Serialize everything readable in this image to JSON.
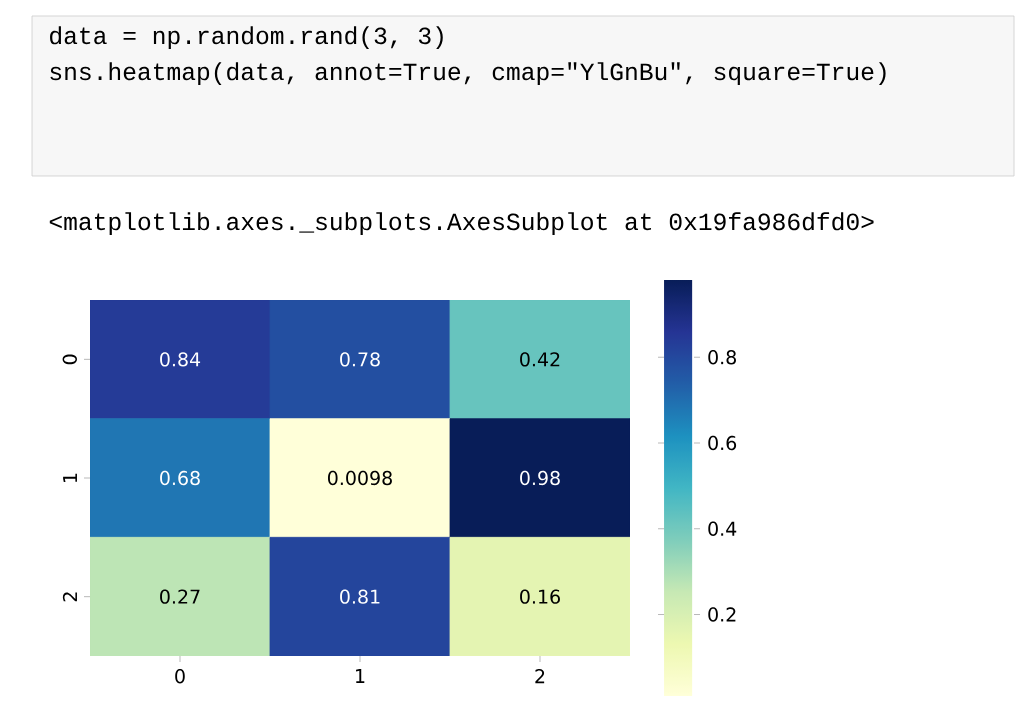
{
  "chart_data": {
    "type": "heatmap",
    "annotations": [
      "data = np.random.rand(3, 3)",
      "sns.heatmap(data, annot=True, cmap=\"YlGnBu\", square=True)",
      "<matplotlib.axes._subplots.AxesSubplot at 0x19fa986dfd0>"
    ],
    "categories": [
      "0",
      "1",
      "2"
    ],
    "y_categories": [
      "0",
      "1",
      "2"
    ],
    "cells": [
      [
        0.84,
        0.78,
        0.42
      ],
      [
        0.68,
        0.0098,
        0.98
      ],
      [
        0.27,
        0.81,
        0.16
      ]
    ],
    "data_labels": true,
    "clim": [
      0.0098,
      0.98
    ],
    "cticks": [
      0.2,
      0.4,
      0.6,
      0.8
    ]
  }
}
